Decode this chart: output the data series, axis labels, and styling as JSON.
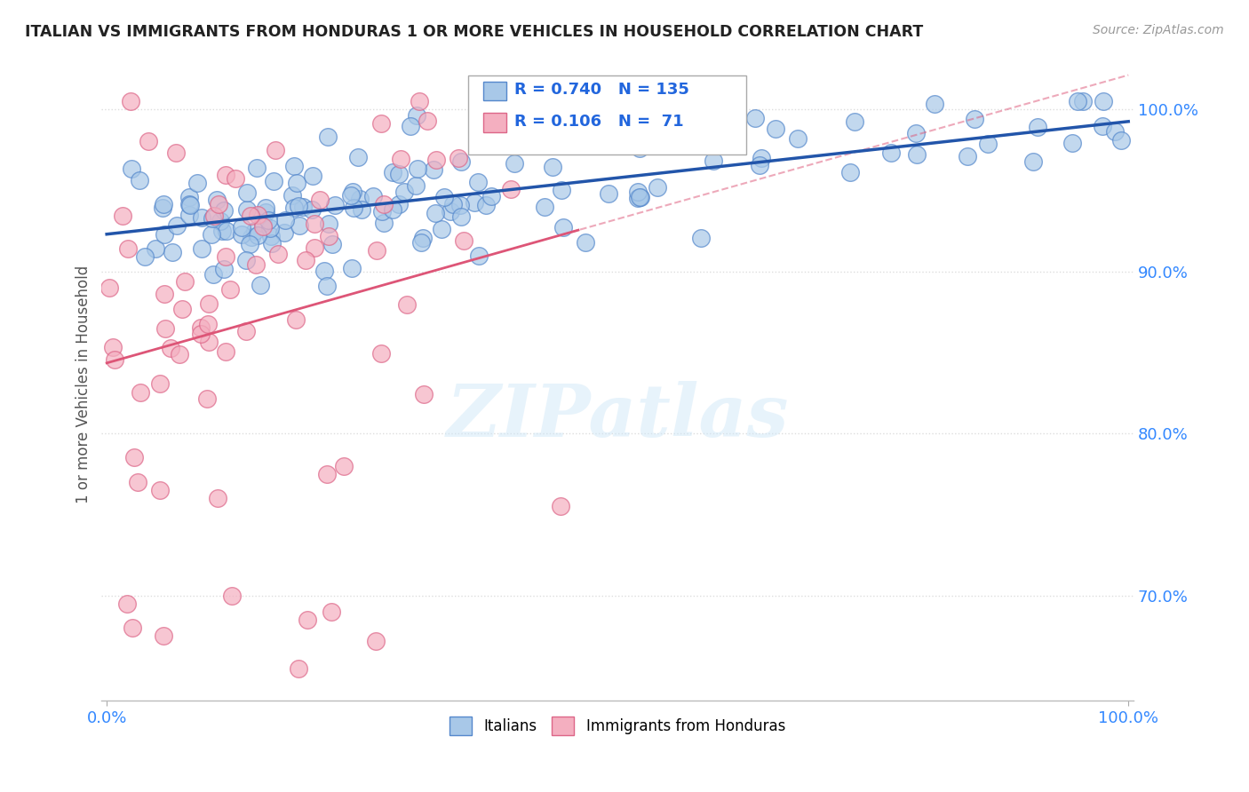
{
  "title": "ITALIAN VS IMMIGRANTS FROM HONDURAS 1 OR MORE VEHICLES IN HOUSEHOLD CORRELATION CHART",
  "source": "Source: ZipAtlas.com",
  "ylabel": "1 or more Vehicles in Household",
  "blue_R": 0.74,
  "blue_N": 135,
  "pink_R": 0.106,
  "pink_N": 71,
  "blue_color": "#a8c8e8",
  "pink_color": "#f4afc0",
  "blue_edge_color": "#5588cc",
  "pink_edge_color": "#dd6688",
  "blue_line_color": "#2255aa",
  "pink_line_color": "#dd5577",
  "background_color": "#ffffff",
  "grid_color": "#dddddd",
  "title_color": "#222222",
  "stat_color": "#2266dd",
  "watermark_color": "#d0e8f8",
  "watermark": "ZIPatlas",
  "seed": 42,
  "ylim_low": 0.635,
  "ylim_high": 1.025,
  "xlim_low": -0.005,
  "xlim_high": 1.005
}
